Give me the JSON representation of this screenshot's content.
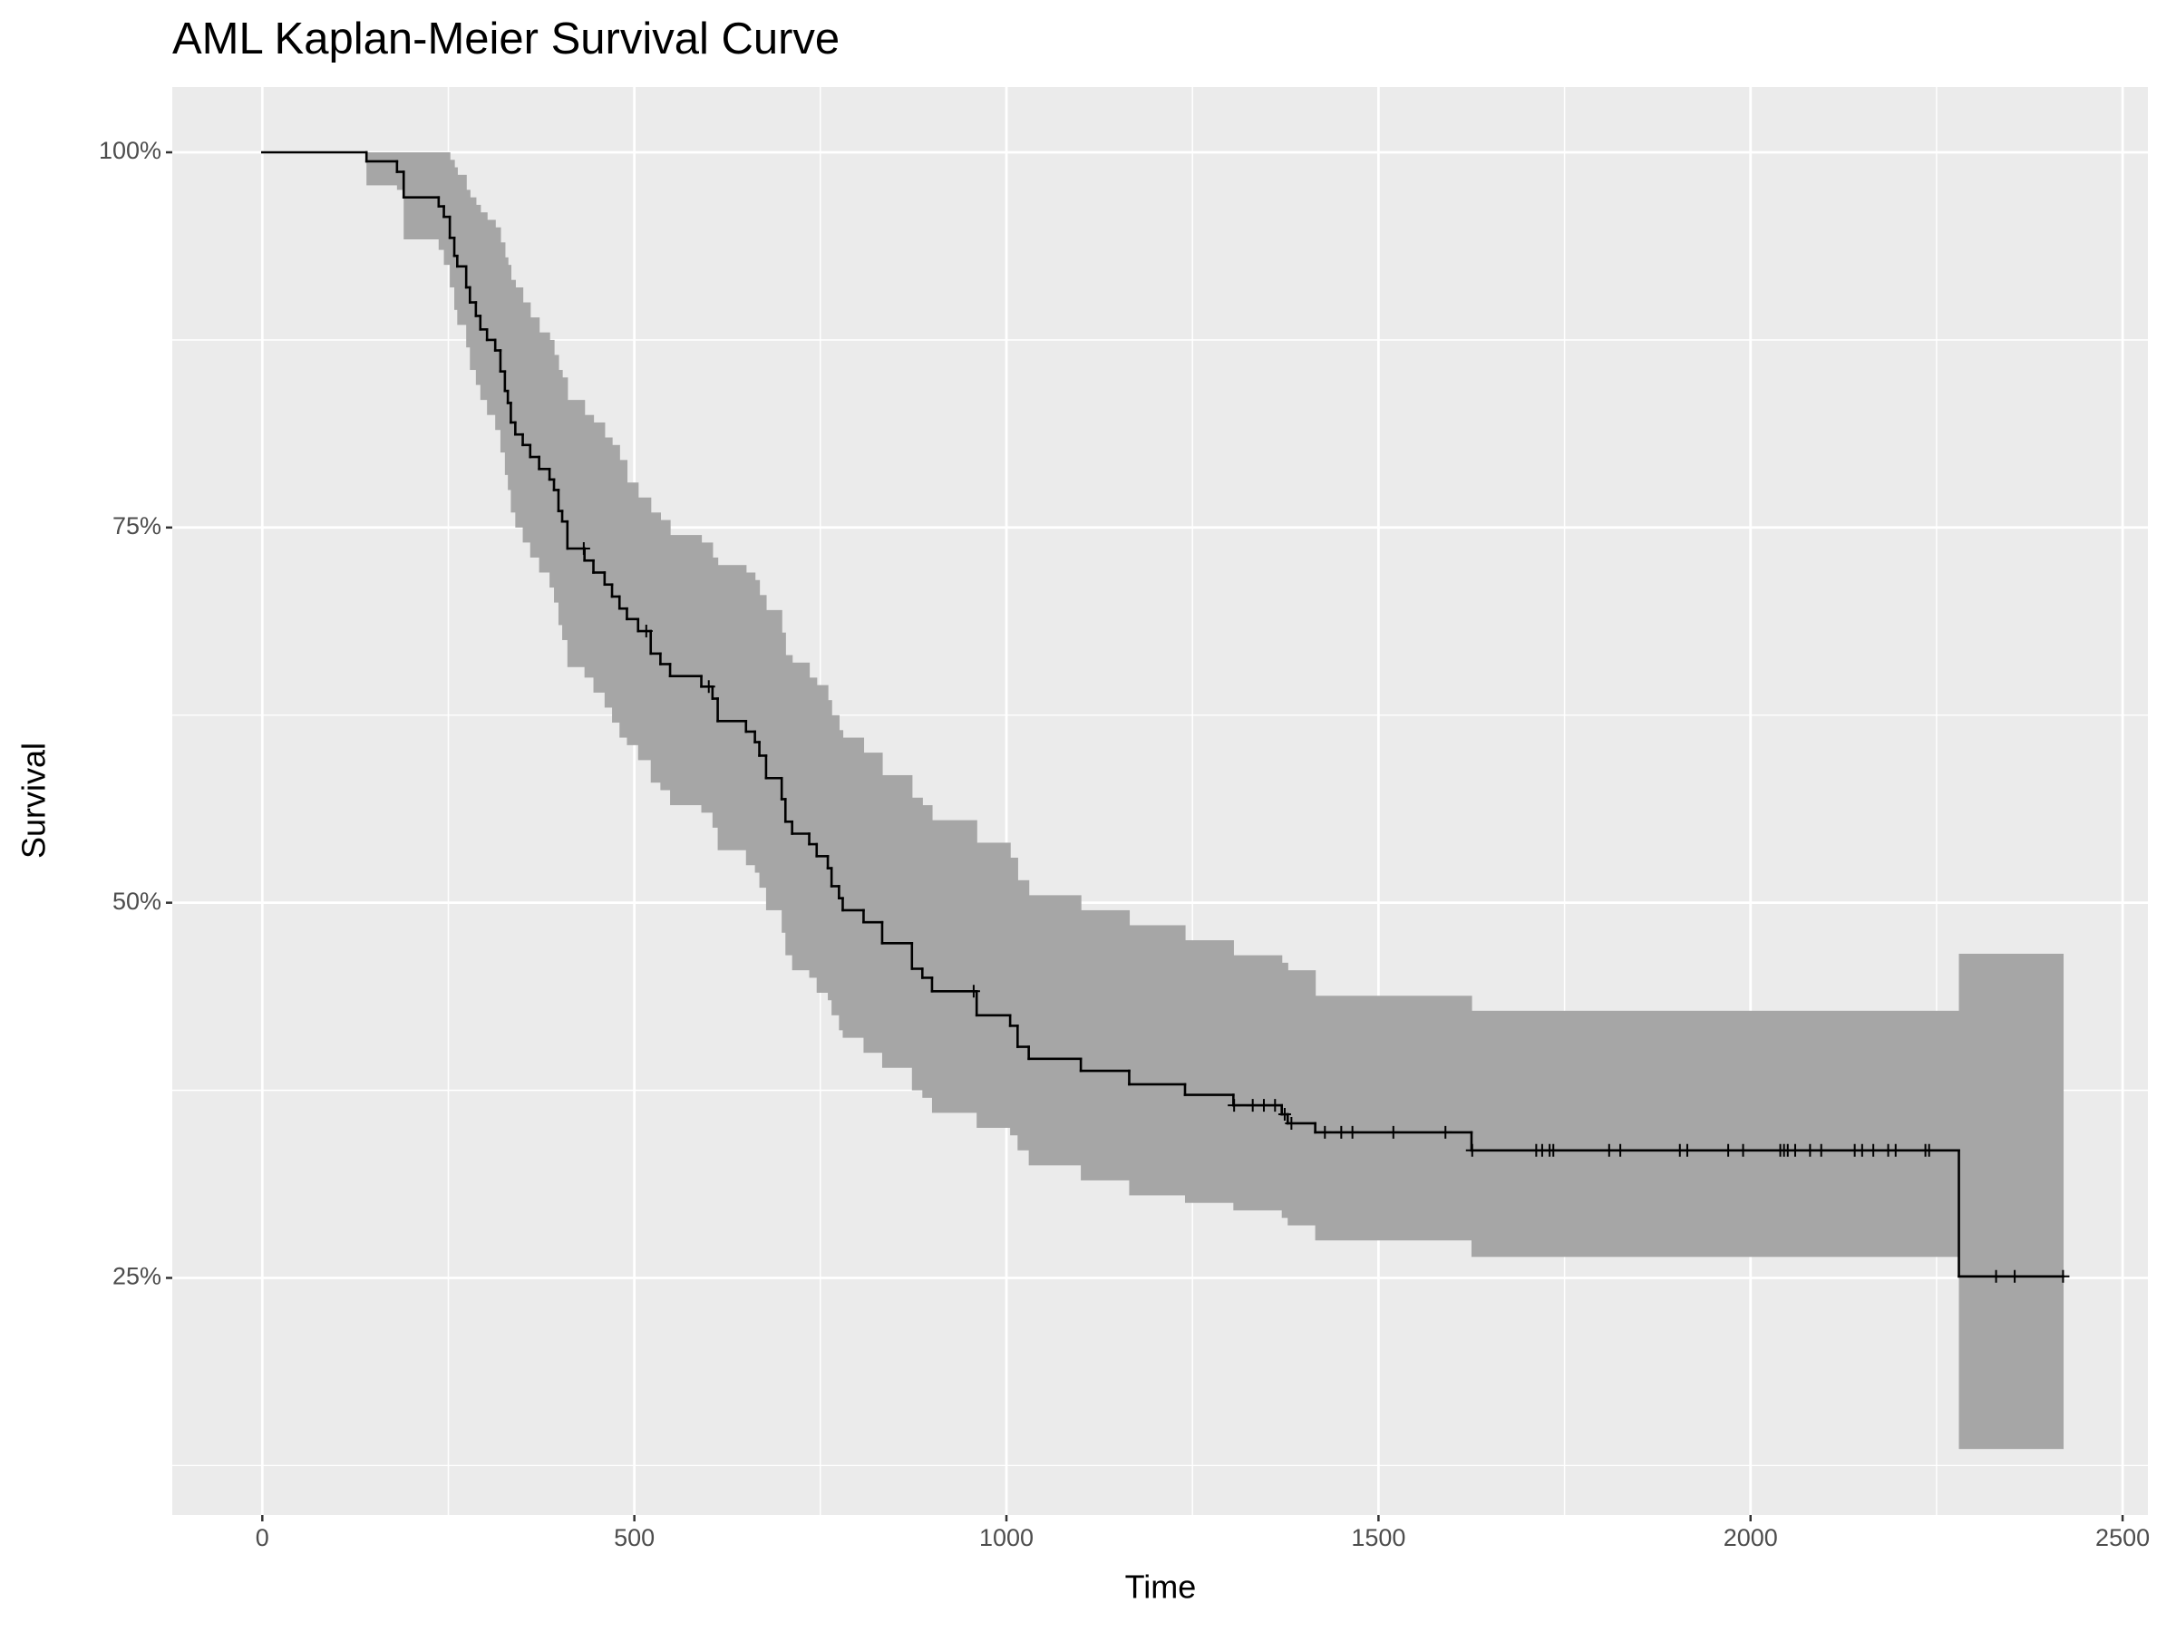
{
  "chart_data": {
    "type": "step",
    "title": "AML Kaplan-Meier Survival Curve",
    "xlabel": "Time",
    "ylabel": "Survival",
    "x": [
      0,
      140,
      181,
      190,
      237,
      244,
      252,
      258,
      262,
      274,
      279,
      287,
      293,
      302,
      313,
      320,
      326,
      330,
      334,
      340,
      350,
      360,
      372,
      386,
      392,
      398,
      403,
      410,
      433,
      445,
      460,
      470,
      480,
      490,
      505,
      522,
      535,
      548,
      590,
      605,
      612,
      650,
      662,
      668,
      677,
      698,
      703,
      712,
      735,
      745,
      760,
      765,
      775,
      780,
      808,
      833,
      873,
      887,
      900,
      960,
      1005,
      1015,
      1030,
      1100,
      1165,
      1240,
      1305,
      1370,
      1378,
      1415,
      1625,
      2280,
      2420
    ],
    "values": [
      100,
      99.4,
      98.7,
      97.0,
      96.4,
      95.7,
      94.3,
      93.1,
      92.4,
      91.0,
      90.0,
      89.1,
      88.2,
      87.5,
      86.8,
      85.4,
      84.1,
      83.3,
      82.0,
      81.2,
      80.5,
      79.7,
      78.9,
      78.2,
      77.5,
      76.1,
      75.4,
      73.6,
      72.8,
      72.0,
      71.2,
      70.4,
      69.6,
      68.9,
      68.1,
      66.6,
      65.9,
      65.1,
      64.4,
      63.6,
      62.1,
      61.4,
      60.7,
      59.8,
      58.3,
      56.9,
      55.4,
      54.6,
      53.9,
      53.1,
      52.3,
      51.1,
      50.3,
      49.5,
      48.7,
      47.3,
      45.6,
      45.0,
      44.1,
      42.5,
      41.8,
      40.4,
      39.6,
      38.8,
      37.9,
      37.2,
      36.5,
      35.9,
      35.3,
      34.7,
      33.5,
      25.1,
      25.1
    ],
    "upper": [
      100,
      100,
      100,
      100,
      100,
      100,
      99.5,
      99,
      98.5,
      97.5,
      97,
      96.5,
      96,
      95.5,
      95,
      94,
      93,
      92.5,
      91.5,
      91,
      90,
      89,
      88,
      87.5,
      86.5,
      85.5,
      85,
      83.5,
      82.5,
      82,
      81,
      80.5,
      79.5,
      78,
      77,
      76,
      75.5,
      74.5,
      74,
      73,
      72.5,
      72,
      71.5,
      70.5,
      69.5,
      68,
      66.5,
      66,
      65,
      64.5,
      63.5,
      62.5,
      61.5,
      61,
      60,
      58.5,
      57,
      56.5,
      55.5,
      54,
      53,
      51.5,
      50.5,
      49.5,
      48.5,
      47.5,
      46.5,
      46,
      45.5,
      43.8,
      42.8,
      46.6,
      46.6
    ],
    "lower": [
      100,
      97.8,
      97.5,
      94.2,
      93.5,
      92.5,
      91,
      89.5,
      88.5,
      87,
      85.5,
      84.5,
      83.5,
      82.5,
      81.5,
      80,
      78.5,
      77.5,
      76,
      75,
      74,
      73,
      72,
      71,
      70,
      68.5,
      67.5,
      65.7,
      65,
      64,
      63,
      62,
      61,
      60.5,
      59.5,
      58,
      57.5,
      56.5,
      56,
      55,
      53.5,
      52.5,
      52,
      51,
      49.5,
      48,
      46.5,
      45.5,
      45,
      44,
      43.5,
      42.5,
      41.5,
      41,
      40,
      39,
      37.5,
      37,
      36,
      35,
      34.5,
      33.5,
      32.5,
      31.5,
      30.5,
      30,
      29.5,
      29,
      28.5,
      27.5,
      26.4,
      13.6,
      13.6
    ],
    "censored": {
      "x": [
        432,
        516,
        600,
        956,
        1306,
        1331,
        1346,
        1361,
        1374,
        1383,
        1428,
        1450,
        1465,
        1520,
        1590,
        1626,
        1712,
        1720,
        1730,
        1735,
        1810,
        1825,
        1905,
        1915,
        1970,
        1990,
        2040,
        2045,
        2050,
        2060,
        2080,
        2095,
        2140,
        2150,
        2165,
        2185,
        2195,
        2235,
        2240,
        2330,
        2355,
        2420
      ],
      "values": [
        73.6,
        68.1,
        64.4,
        44.1,
        36.5,
        36.5,
        36.5,
        36.5,
        35.9,
        35.3,
        34.7,
        34.7,
        34.7,
        34.7,
        34.7,
        33.5,
        33.5,
        33.5,
        33.5,
        33.5,
        33.5,
        33.5,
        33.5,
        33.5,
        33.5,
        33.5,
        33.5,
        33.5,
        33.5,
        33.5,
        33.5,
        33.5,
        33.5,
        33.5,
        33.5,
        33.5,
        33.5,
        33.5,
        33.5,
        25.1,
        25.1,
        25.1
      ]
    },
    "color": "#000000",
    "band_color": "#a6a6a6",
    "xlim": [
      -121,
      2534
    ],
    "ylim": [
      9.2,
      104.35
    ],
    "xticks": [
      0,
      500,
      1000,
      1500,
      2000,
      2500
    ],
    "yticks": [
      {
        "value": 25,
        "label": "25%"
      },
      {
        "value": 50,
        "label": "50%"
      },
      {
        "value": 75,
        "label": "75%"
      },
      {
        "value": 100,
        "label": "100%"
      }
    ],
    "grid": true
  }
}
